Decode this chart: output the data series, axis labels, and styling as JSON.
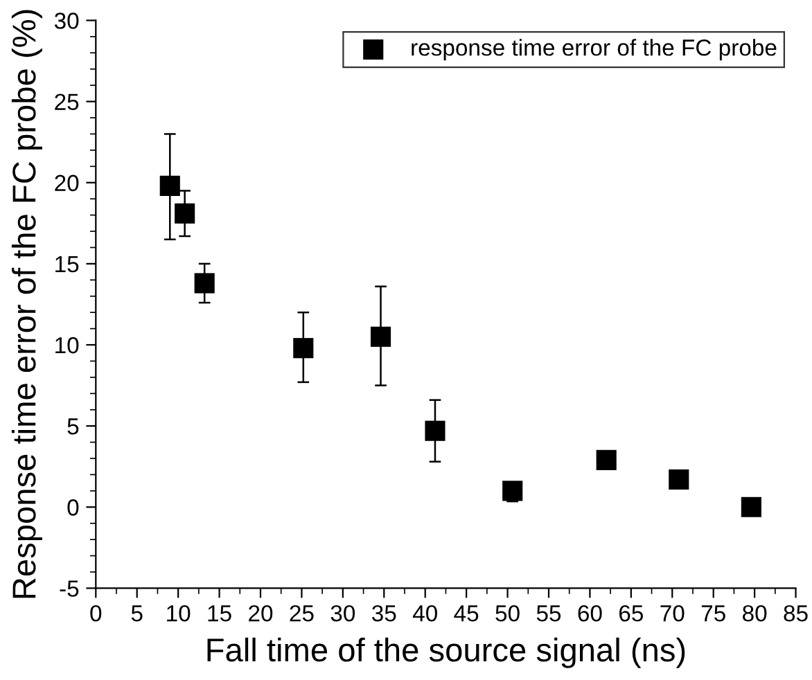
{
  "chart_data": {
    "type": "scatter",
    "xlabel": "Fall time of the source signal (ns)",
    "ylabel": "Response time error of the FC probe (%)",
    "series": [
      {
        "name": "response time error of the FC probe",
        "color": "#000000",
        "x": [
          9.0,
          10.8,
          13.2,
          25.2,
          34.6,
          41.2,
          50.6,
          62.0,
          70.8,
          79.6
        ],
        "values": [
          19.8,
          18.1,
          13.8,
          9.8,
          10.5,
          4.7,
          1.0,
          2.9,
          1.7,
          0.0
        ],
        "errors": [
          [
            16.5,
            23.0
          ],
          [
            16.7,
            19.5
          ],
          [
            12.6,
            15.0
          ],
          [
            7.7,
            12.0
          ],
          [
            7.5,
            13.6
          ],
          [
            2.8,
            6.6
          ],
          [
            0.35,
            1.5
          ],
          null,
          null,
          null
        ]
      }
    ],
    "marker": "square",
    "xlim": [
      0,
      85
    ],
    "xticks": [
      0,
      5,
      10,
      15,
      20,
      25,
      30,
      35,
      40,
      45,
      50,
      55,
      60,
      65,
      70,
      75,
      80,
      85
    ],
    "ylim": [
      -5,
      30
    ],
    "yticks": [
      -5,
      0,
      5,
      10,
      15,
      20,
      25,
      30
    ],
    "grid": false,
    "legend": "top right"
  }
}
